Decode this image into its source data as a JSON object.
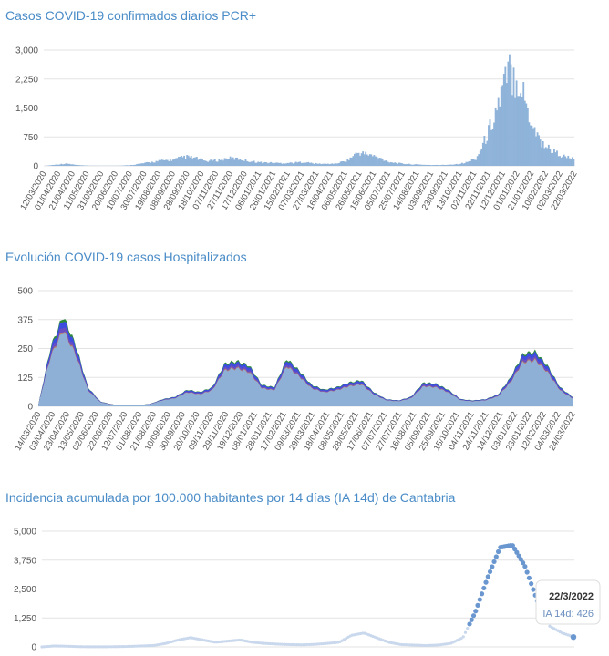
{
  "colors": {
    "title": "#4a8cc7",
    "cases_fill": "#8fb3d9",
    "hosp_fill": "#8fb0d6",
    "hosp_blue": "#3d4de0",
    "hosp_green": "#2e8b3a",
    "hosp_orange": "#e8a13a",
    "hosp_purple": "#7a4fb5",
    "ia_dots": "#6a97cf",
    "ia_light": "#c9d8ec",
    "grid": "#e3e3e3"
  },
  "chart_data": [
    {
      "type": "bar",
      "title": "Casos COVID-19 confirmados diarios PCR+",
      "yticks": [
        "3,000",
        "2,250",
        "1,500",
        "750",
        "0"
      ],
      "ylim": [
        0,
        3000
      ],
      "xticks": [
        "12/03/2020",
        "01/04/2020",
        "21/04/2020",
        "11/05/2020",
        "31/05/2020",
        "20/06/2020",
        "10/07/2020",
        "30/07/2020",
        "19/08/2020",
        "08/09/2020",
        "28/09/2020",
        "18/10/2020",
        "07/11/2020",
        "27/11/2020",
        "17/12/2020",
        "06/01/2021",
        "26/01/2021",
        "15/02/2021",
        "07/03/2021",
        "27/03/2021",
        "16/04/2021",
        "06/05/2021",
        "26/05/2021",
        "15/06/2021",
        "05/07/2021",
        "25/07/2021",
        "14/08/2021",
        "03/09/2021",
        "23/09/2021",
        "13/10/2021",
        "02/11/2021",
        "22/11/2021",
        "12/12/2021",
        "01/01/2022",
        "21/01/2022",
        "10/02/2022",
        "02/03/2022",
        "22/03/2022"
      ],
      "series": [
        {
          "values": [
            0,
            30,
            60,
            20,
            5,
            3,
            3,
            5,
            20,
            60,
            100,
            140,
            160,
            240,
            200,
            120,
            140,
            200,
            180,
            120,
            90,
            80,
            70,
            80,
            100,
            60,
            50,
            60,
            140,
            340,
            300,
            200,
            100,
            60,
            40,
            30,
            20,
            25,
            40,
            80,
            200,
            800,
            1600,
            2450,
            2200,
            1200,
            600,
            400,
            250,
            180
          ]
        }
      ]
    },
    {
      "type": "area",
      "title": "Evolución COVID-19 casos  Hospitalizados",
      "yticks": [
        "500",
        "375",
        "250",
        "125",
        "0"
      ],
      "ylim": [
        0,
        500
      ],
      "xticks": [
        "14/03/2020",
        "03/04/2020",
        "23/04/2020",
        "13/05/2020",
        "02/06/2020",
        "22/06/2020",
        "12/07/2020",
        "01/08/2020",
        "21/08/2020",
        "10/09/2020",
        "30/09/2020",
        "20/10/2020",
        "09/11/2020",
        "29/11/2020",
        "19/12/2020",
        "08/01/2021",
        "28/01/2021",
        "17/02/2021",
        "09/03/2021",
        "29/03/2021",
        "18/04/2021",
        "08/05/2021",
        "28/05/2021",
        "17/06/2021",
        "07/07/2021",
        "27/07/2021",
        "16/08/2021",
        "05/09/2021",
        "25/09/2021",
        "15/10/2021",
        "04/11/2021",
        "24/11/2021",
        "14/12/2021",
        "03/01/2022",
        "23/01/2022",
        "12/02/2022",
        "04/03/2022",
        "24/03/2022"
      ],
      "series": [
        {
          "values": [
            5,
            250,
            380,
            260,
            80,
            20,
            8,
            5,
            5,
            10,
            30,
            40,
            70,
            60,
            80,
            180,
            190,
            170,
            90,
            80,
            200,
            150,
            90,
            70,
            80,
            100,
            110,
            60,
            30,
            25,
            40,
            100,
            95,
            70,
            30,
            25,
            30,
            50,
            120,
            220,
            230,
            170,
            80,
            40
          ]
        }
      ]
    },
    {
      "type": "scatter",
      "title": "Incidencia acumulada por 100.000 habitantes por 14 días (IA 14d) de Cantabria",
      "yticks": [
        "5,000",
        "3,750",
        "2,500",
        "1,250",
        "0"
      ],
      "ylim": [
        0,
        5000
      ],
      "tooltip": {
        "date": "22/3/2022",
        "label": "IA 14d: 426"
      },
      "series": [
        {
          "values": [
            0,
            40,
            30,
            10,
            5,
            5,
            10,
            20,
            40,
            60,
            150,
            300,
            400,
            300,
            200,
            250,
            300,
            200,
            150,
            120,
            100,
            90,
            110,
            150,
            200,
            500,
            600,
            400,
            200,
            100,
            80,
            60,
            80,
            150,
            400,
            1500,
            3000,
            4300,
            4400,
            3500,
            2000,
            900,
            600,
            426
          ]
        }
      ]
    }
  ]
}
